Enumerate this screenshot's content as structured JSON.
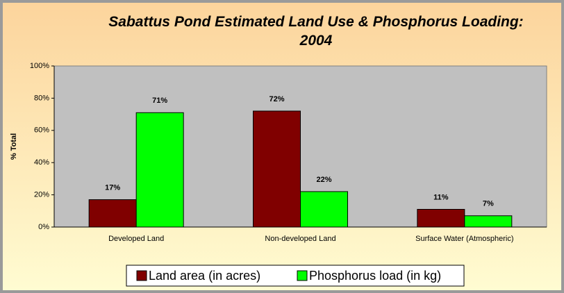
{
  "chart_data": {
    "type": "bar",
    "title": "Sabattus Pond Estimated Land Use & Phosphorus Loading: 2004",
    "y_label": "% Total",
    "categories": [
      "Developed Land",
      "Non-developed Land",
      "Surface Water (Atmospheric)"
    ],
    "series": [
      {
        "name": "Land area (in acres)",
        "color": "#800000",
        "values": [
          17,
          72,
          11
        ],
        "value_labels": [
          "17%",
          "72%",
          "11%"
        ]
      },
      {
        "name": "Phosphorus load (in kg)",
        "color": "#00ff00",
        "values": [
          71,
          22,
          7
        ],
        "value_labels": [
          "71%",
          "22%",
          "7%"
        ]
      }
    ],
    "ylim": [
      0,
      100
    ],
    "yticks": [
      {
        "value": 0,
        "label": "0%"
      },
      {
        "value": 20,
        "label": "20%"
      },
      {
        "value": 40,
        "label": "40%"
      },
      {
        "value": 60,
        "label": "60%"
      },
      {
        "value": 80,
        "label": "80%"
      },
      {
        "value": 100,
        "label": "100%"
      }
    ],
    "legend": "bottom"
  }
}
